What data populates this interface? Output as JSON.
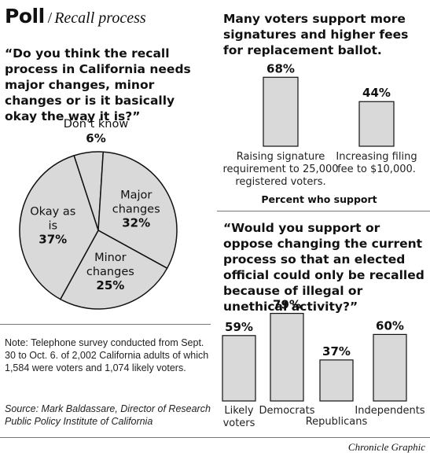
{
  "header": {
    "title": "Poll",
    "separator": "/",
    "subtitle": "Recall process"
  },
  "credit": "Chronicle Graphic",
  "note": {
    "text": "Note: Telephone survey conducted from Sept. 30 to Oct. 6. of 2,002 California adults of which 1,584 were voters and 1,074 likely voters.",
    "source": "Source: Mark Baldassare, Director of Research Public Policy Institute of California"
  },
  "chart_data": [
    {
      "type": "pie",
      "title": "“Do you think the recall process in California needs major changes, minor changes or is it basically okay the way it is?”",
      "slices": [
        {
          "label": "Don’t know",
          "value": 6,
          "value_label": "6%"
        },
        {
          "label": "Major changes",
          "value": 32,
          "value_label": "32%"
        },
        {
          "label": "Minor changes",
          "value": 25,
          "value_label": "25%"
        },
        {
          "label": "Okay as is",
          "value": 37,
          "value_label": "37%"
        }
      ],
      "fill": "#d9d9d9",
      "stroke": "#111111"
    },
    {
      "type": "bar",
      "title": "Many voters support more signatures and higher fees for replacement ballot.",
      "categories": [
        "Raising signature requirement to 25,000 registered voters.",
        "Increasing filing fee to $10,000."
      ],
      "values": [
        68,
        44
      ],
      "value_labels": [
        "68%",
        "44%"
      ],
      "xlabel": "Percent who support",
      "fill": "#d9d9d9"
    },
    {
      "type": "bar",
      "title": "“Would you support or oppose changing the current process so that an elected official could only be recalled because of illegal or unethical activity?”",
      "categories": [
        "Likely voters",
        "Democrats",
        "Republicans",
        "Independents"
      ],
      "values": [
        59,
        79,
        37,
        60
      ],
      "value_labels": [
        "59%",
        "79%",
        "37%",
        "60%"
      ],
      "fill": "#d9d9d9"
    }
  ]
}
